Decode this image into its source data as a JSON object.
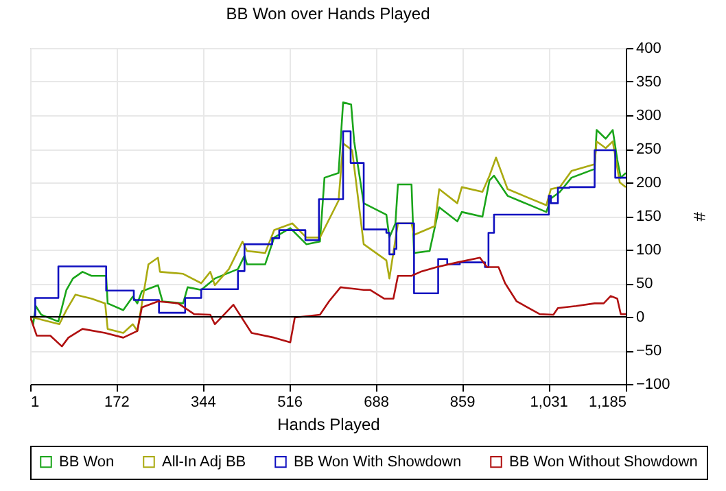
{
  "chart_data": {
    "type": "line",
    "title": "BB Won over Hands Played",
    "xlabel": "Hands Played",
    "ylabel": "#",
    "xlim": [
      1,
      1185
    ],
    "xticks": [
      1,
      172,
      344,
      516,
      688,
      859,
      {
        "value": 1031,
        "label": "1,031"
      },
      {
        "value": 1185,
        "label": "1,185"
      }
    ],
    "ylim": [
      -100,
      400
    ],
    "yticks": [
      -100,
      -50,
      0,
      50,
      100,
      150,
      200,
      250,
      300,
      350,
      400
    ],
    "grid": true,
    "legend": "bottom",
    "marker": "none",
    "line_style": "solid",
    "ref_lines": [
      {
        "axis": "y",
        "value": 0,
        "color": "#000000"
      }
    ],
    "series": [
      {
        "name": "BB Won",
        "color": "#1aa51a",
        "x": [
          1,
          7,
          12,
          23,
          57,
          73,
          86,
          105,
          123,
          152,
          155,
          186,
          205,
          214,
          223,
          255,
          264,
          305,
          314,
          341,
          368,
          414,
          427,
          432,
          468,
          486,
          518,
          550,
          577,
          586,
          614,
          623,
          639,
          645,
          664,
          709,
          715,
          727,
          732,
          759,
          764,
          795,
          814,
          850,
          859,
          900,
          914,
          923,
          950,
          1027,
          1036,
          1054,
          1077,
          1123,
          1127,
          1145,
          1159,
          1168,
          1175,
          1185
        ],
        "values": [
          0,
          -11,
          16,
          3,
          -7,
          40,
          57,
          67,
          61,
          61,
          20,
          10,
          30,
          20,
          38,
          47,
          23,
          20,
          44,
          40,
          57,
          71,
          91,
          78,
          78,
          118,
          132,
          108,
          112,
          207,
          214,
          319,
          316,
          261,
          169,
          152,
          118,
          139,
          197,
          197,
          95,
          98,
          163,
          142,
          156,
          149,
          203,
          210,
          180,
          156,
          176,
          186,
          207,
          220,
          278,
          265,
          278,
          234,
          207,
          214
        ]
      },
      {
        "name": "All-In Adj BB",
        "color": "#aaaa10",
        "x": [
          1,
          59,
          73,
          91,
          123,
          150,
          155,
          186,
          205,
          214,
          236,
          255,
          259,
          305,
          341,
          359,
          368,
          396,
          423,
          432,
          468,
          486,
          522,
          550,
          577,
          614,
          623,
          641,
          664,
          709,
          715,
          727,
          732,
          759,
          764,
          805,
          814,
          850,
          859,
          900,
          914,
          927,
          950,
          1027,
          1036,
          1054,
          1077,
          1123,
          1127,
          1145,
          1159,
          1173,
          1185
        ],
        "values": [
          0,
          -11,
          10,
          33,
          27,
          20,
          -18,
          -24,
          -11,
          -21,
          78,
          88,
          67,
          64,
          50,
          67,
          47,
          71,
          112,
          98,
          95,
          129,
          139,
          118,
          118,
          173,
          258,
          248,
          108,
          84,
          57,
          115,
          139,
          139,
          122,
          135,
          190,
          169,
          193,
          186,
          210,
          237,
          190,
          166,
          190,
          193,
          217,
          227,
          261,
          251,
          261,
          200,
          193
        ]
      },
      {
        "name": "BB Won With Showdown",
        "color": "#1010c0",
        "x": [
          1,
          11,
          11,
          57,
          57,
          152,
          152,
          207,
          207,
          257,
          257,
          309,
          309,
          341,
          341,
          414,
          414,
          427,
          427,
          482,
          482,
          496,
          496,
          548,
          548,
          575,
          575,
          623,
          623,
          638,
          638,
          664,
          664,
          709,
          709,
          715,
          715,
          725,
          725,
          729,
          729,
          759,
          759,
          764,
          764,
          809,
          809,
          812,
          812,
          830,
          830,
          855,
          855,
          900,
          900,
          905,
          905,
          912,
          912,
          923,
          923,
          1032,
          1032,
          1036,
          1036,
          1050,
          1050,
          1073,
          1073,
          1123,
          1123,
          1129,
          1129,
          1164,
          1164,
          1168,
          1168,
          1185
        ],
        "values": [
          0,
          0,
          28,
          28,
          75,
          75,
          39,
          39,
          25,
          25,
          6,
          6,
          28,
          28,
          41,
          41,
          68,
          68,
          108,
          108,
          117,
          117,
          129,
          129,
          114,
          114,
          175,
          175,
          276,
          276,
          229,
          229,
          130,
          130,
          125,
          125,
          93,
          93,
          101,
          101,
          139,
          139,
          139,
          139,
          35,
          35,
          35,
          35,
          86,
          86,
          78,
          78,
          81,
          81,
          81,
          81,
          74,
          74,
          125,
          125,
          152,
          152,
          180,
          180,
          169,
          169,
          192,
          192,
          193,
          193,
          248,
          248,
          248,
          248,
          207,
          207,
          207,
          207
        ]
      },
      {
        "name": "BB Won Without Showdown",
        "color": "#b01010",
        "x": [
          1,
          14,
          41,
          64,
          77,
          105,
          150,
          186,
          214,
          223,
          255,
          295,
          327,
          359,
          368,
          405,
          441,
          486,
          518,
          527,
          577,
          595,
          618,
          664,
          677,
          705,
          723,
          732,
          759,
          777,
          809,
          850,
          895,
          909,
          932,
          945,
          968,
          1014,
          1041,
          1050,
          1086,
          1123,
          1141,
          1155,
          1168,
          1175,
          1185
        ],
        "values": [
          0,
          -28,
          -28,
          -44,
          -31,
          -18,
          -24,
          -31,
          -21,
          14,
          23,
          20,
          4,
          3,
          -11,
          18,
          -24,
          -31,
          -38,
          -1,
          3,
          23,
          44,
          40,
          40,
          27,
          27,
          61,
          61,
          67,
          74,
          81,
          88,
          74,
          74,
          50,
          23,
          4,
          3,
          13,
          16,
          20,
          20,
          31,
          27,
          4,
          4
        ]
      }
    ]
  }
}
